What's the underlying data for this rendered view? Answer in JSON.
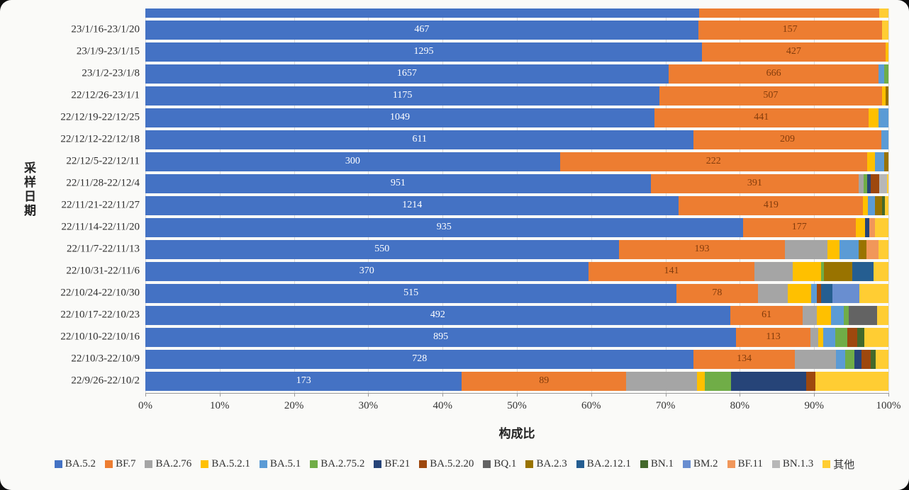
{
  "chart_data": {
    "type": "bar",
    "subtype": "horizontal-stacked-100pct",
    "title": "",
    "xlabel": "构成比",
    "ylabel": "采样日期",
    "x_ticks": [
      "0%",
      "10%",
      "20%",
      "30%",
      "40%",
      "50%",
      "60%",
      "70%",
      "80%",
      "90%",
      "100%"
    ],
    "xlim": [
      0,
      100
    ],
    "grid": "vertical-light",
    "legend_position": "bottom",
    "label_color_on_blue": "#ffffff",
    "label_color_on_orange": "#833c0c",
    "series": [
      {
        "name": "BA.5.2",
        "color": "#4472C4"
      },
      {
        "name": "BF.7",
        "color": "#ED7D31"
      },
      {
        "name": "BA.2.76",
        "color": "#A5A5A5"
      },
      {
        "name": "BA.5.2.1",
        "color": "#FFC000"
      },
      {
        "name": "BA.5.1",
        "color": "#5B9BD5"
      },
      {
        "name": "BA.2.75.2",
        "color": "#70AD47"
      },
      {
        "name": "BF.21",
        "color": "#264478"
      },
      {
        "name": "BA.5.2.20",
        "color": "#9E480E"
      },
      {
        "name": "BQ.1",
        "color": "#636363"
      },
      {
        "name": "BA.2.3",
        "color": "#997300"
      },
      {
        "name": "BA.2.12.1",
        "color": "#255E91"
      },
      {
        "name": "BN.1",
        "color": "#43682B"
      },
      {
        "name": "BM.2",
        "color": "#698ED0"
      },
      {
        "name": "BF.11",
        "color": "#F1975A"
      },
      {
        "name": "BN.1.3",
        "color": "#B7B7B7"
      },
      {
        "name": "其他",
        "color": "#FFCD33"
      }
    ],
    "partial_top_row": {
      "note": "bar clipped at top edge of screenshot, no labels visible",
      "segments": [
        {
          "series": "BA.5.2",
          "pct": 74.5
        },
        {
          "series": "BF.7",
          "pct": 24.3
        },
        {
          "series": "其他",
          "pct": 1.2
        }
      ]
    },
    "rows": [
      {
        "category": "23/1/16-23/1/20",
        "segments": [
          {
            "series": "BA.5.2",
            "pct": 74.4,
            "label": "467"
          },
          {
            "series": "BF.7",
            "pct": 24.7,
            "label": "157"
          },
          {
            "series": "其他",
            "pct": 0.9
          }
        ]
      },
      {
        "category": "23/1/9-23/1/15",
        "segments": [
          {
            "series": "BA.5.2",
            "pct": 74.9,
            "label": "1295"
          },
          {
            "series": "BF.7",
            "pct": 24.7,
            "label": "427"
          },
          {
            "series": "BA.5.2.1",
            "pct": 0.4
          }
        ]
      },
      {
        "category": "23/1/2-23/1/8",
        "segments": [
          {
            "series": "BA.5.2",
            "pct": 70.4,
            "label": "1657"
          },
          {
            "series": "BF.7",
            "pct": 28.3,
            "label": "666"
          },
          {
            "series": "BA.5.1",
            "pct": 0.7
          },
          {
            "series": "BA.2.75.2",
            "pct": 0.6
          }
        ]
      },
      {
        "category": "22/12/26-23/1/1",
        "segments": [
          {
            "series": "BA.5.2",
            "pct": 69.2,
            "label": "1175"
          },
          {
            "series": "BF.7",
            "pct": 29.9,
            "label": "507"
          },
          {
            "series": "BA.5.2.1",
            "pct": 0.5
          },
          {
            "series": "BA.2.3",
            "pct": 0.4
          }
        ]
      },
      {
        "category": "22/12/19-22/12/25",
        "segments": [
          {
            "series": "BA.5.2",
            "pct": 68.5,
            "label": "1049"
          },
          {
            "series": "BF.7",
            "pct": 28.8,
            "label": "441"
          },
          {
            "series": "BA.5.2.1",
            "pct": 1.4
          },
          {
            "series": "BA.5.1",
            "pct": 1.3
          }
        ]
      },
      {
        "category": "22/12/12-22/12/18",
        "segments": [
          {
            "series": "BA.5.2",
            "pct": 73.8,
            "label": "611"
          },
          {
            "series": "BF.7",
            "pct": 25.2,
            "label": "209"
          },
          {
            "series": "BA.5.1",
            "pct": 1.0
          }
        ]
      },
      {
        "category": "22/12/5-22/12/11",
        "segments": [
          {
            "series": "BA.5.2",
            "pct": 55.8,
            "label": "300"
          },
          {
            "series": "BF.7",
            "pct": 41.3,
            "label": "222"
          },
          {
            "series": "BA.5.2.1",
            "pct": 1.1
          },
          {
            "series": "BA.5.1",
            "pct": 1.2
          },
          {
            "series": "BA.2.3",
            "pct": 0.6
          }
        ]
      },
      {
        "category": "22/11/28-22/12/4",
        "segments": [
          {
            "series": "BA.5.2",
            "pct": 68.0,
            "label": "951"
          },
          {
            "series": "BF.7",
            "pct": 28.0,
            "label": "391"
          },
          {
            "series": "BA.2.76",
            "pct": 0.7
          },
          {
            "series": "BA.2.75.2",
            "pct": 0.4
          },
          {
            "series": "BF.21",
            "pct": 0.5
          },
          {
            "series": "BA.5.2.20",
            "pct": 1.2
          },
          {
            "series": "BN.1.3",
            "pct": 1.0
          },
          {
            "series": "其他",
            "pct": 0.2
          }
        ]
      },
      {
        "category": "22/11/21-22/11/27",
        "segments": [
          {
            "series": "BA.5.2",
            "pct": 71.8,
            "label": "1214"
          },
          {
            "series": "BF.7",
            "pct": 24.8,
            "label": "419"
          },
          {
            "series": "BA.5.2.1",
            "pct": 0.6
          },
          {
            "series": "BA.5.1",
            "pct": 1.0
          },
          {
            "series": "BA.2.3",
            "pct": 0.9
          },
          {
            "series": "BN.1",
            "pct": 0.4
          },
          {
            "series": "其他",
            "pct": 0.5
          }
        ]
      },
      {
        "category": "22/11/14-22/11/20",
        "segments": [
          {
            "series": "BA.5.2",
            "pct": 80.4,
            "label": "935"
          },
          {
            "series": "BF.7",
            "pct": 15.2,
            "label": "177"
          },
          {
            "series": "BA.5.2.1",
            "pct": 1.3
          },
          {
            "series": "BF.21",
            "pct": 0.5
          },
          {
            "series": "BF.11",
            "pct": 0.8
          },
          {
            "series": "其他",
            "pct": 1.8
          }
        ]
      },
      {
        "category": "22/11/7-22/11/13",
        "segments": [
          {
            "series": "BA.5.2",
            "pct": 63.7,
            "label": "550"
          },
          {
            "series": "BF.7",
            "pct": 22.4,
            "label": "193"
          },
          {
            "series": "BA.2.76",
            "pct": 5.7
          },
          {
            "series": "BA.5.2.1",
            "pct": 1.6
          },
          {
            "series": "BA.5.1",
            "pct": 2.6
          },
          {
            "series": "BA.2.3",
            "pct": 1.0
          },
          {
            "series": "BF.11",
            "pct": 1.7
          },
          {
            "series": "其他",
            "pct": 1.3
          }
        ]
      },
      {
        "category": "22/10/31-22/11/6",
        "segments": [
          {
            "series": "BA.5.2",
            "pct": 59.6,
            "label": "370"
          },
          {
            "series": "BF.7",
            "pct": 22.4,
            "label": "141"
          },
          {
            "series": "BA.2.76",
            "pct": 5.1
          },
          {
            "series": "BA.5.2.1",
            "pct": 3.8
          },
          {
            "series": "BA.2.75.2",
            "pct": 0.4
          },
          {
            "series": "BA.2.3",
            "pct": 3.8
          },
          {
            "series": "BA.2.12.1",
            "pct": 2.9
          },
          {
            "series": "其他",
            "pct": 2.0
          }
        ]
      },
      {
        "category": "22/10/24-22/10/30",
        "segments": [
          {
            "series": "BA.5.2",
            "pct": 71.5,
            "label": "515"
          },
          {
            "series": "BF.7",
            "pct": 10.9,
            "label": "78"
          },
          {
            "series": "BA.2.76",
            "pct": 4.1
          },
          {
            "series": "BA.5.2.1",
            "pct": 3.1
          },
          {
            "series": "BA.5.1",
            "pct": 0.8
          },
          {
            "series": "BA.5.2.20",
            "pct": 0.5
          },
          {
            "series": "BA.2.12.1",
            "pct": 1.6
          },
          {
            "series": "BM.2",
            "pct": 3.6
          },
          {
            "series": "其他",
            "pct": 3.9
          }
        ]
      },
      {
        "category": "22/10/17-22/10/23",
        "segments": [
          {
            "series": "BA.5.2",
            "pct": 78.7,
            "label": "492"
          },
          {
            "series": "BF.7",
            "pct": 9.8,
            "label": "61"
          },
          {
            "series": "BA.2.76",
            "pct": 1.9
          },
          {
            "series": "BA.5.2.1",
            "pct": 1.9
          },
          {
            "series": "BA.5.1",
            "pct": 1.7
          },
          {
            "series": "BA.2.75.2",
            "pct": 0.7
          },
          {
            "series": "BQ.1",
            "pct": 3.8
          },
          {
            "series": "其他",
            "pct": 1.5
          }
        ]
      },
      {
        "category": "22/10/10-22/10/16",
        "segments": [
          {
            "series": "BA.5.2",
            "pct": 79.5,
            "label": "895"
          },
          {
            "series": "BF.7",
            "pct": 10.0,
            "label": "113"
          },
          {
            "series": "BA.2.76",
            "pct": 1.1
          },
          {
            "series": "BA.5.2.1",
            "pct": 0.6
          },
          {
            "series": "BA.5.1",
            "pct": 1.6
          },
          {
            "series": "BA.2.75.2",
            "pct": 1.7
          },
          {
            "series": "BA.5.2.20",
            "pct": 1.3
          },
          {
            "series": "BN.1",
            "pct": 1.0
          },
          {
            "series": "其他",
            "pct": 3.2
          }
        ]
      },
      {
        "category": "22/10/3-22/10/9",
        "segments": [
          {
            "series": "BA.5.2",
            "pct": 73.8,
            "label": "728"
          },
          {
            "series": "BF.7",
            "pct": 13.6,
            "label": "134"
          },
          {
            "series": "BA.2.76",
            "pct": 5.5
          },
          {
            "series": "BA.5.1",
            "pct": 1.3
          },
          {
            "series": "BA.2.75.2",
            "pct": 1.2
          },
          {
            "series": "BF.21",
            "pct": 1.0
          },
          {
            "series": "BA.5.2.20",
            "pct": 1.2
          },
          {
            "series": "BN.1",
            "pct": 0.7
          },
          {
            "series": "其他",
            "pct": 1.7
          }
        ]
      },
      {
        "category": "22/9/26-22/10/2",
        "segments": [
          {
            "series": "BA.5.2",
            "pct": 42.6,
            "label": "173"
          },
          {
            "series": "BF.7",
            "pct": 22.1,
            "label": "89"
          },
          {
            "series": "BA.2.76",
            "pct": 9.5
          },
          {
            "series": "BA.5.2.1",
            "pct": 1.1
          },
          {
            "series": "BA.2.75.2",
            "pct": 3.5
          },
          {
            "series": "BF.21",
            "pct": 10.1
          },
          {
            "series": "BA.5.2.20",
            "pct": 1.3
          },
          {
            "series": "其他",
            "pct": 9.8
          }
        ]
      }
    ]
  }
}
